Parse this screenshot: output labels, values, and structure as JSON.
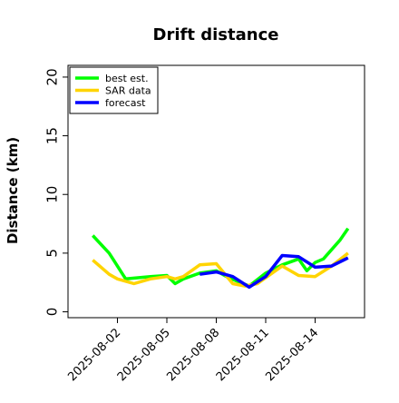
{
  "chart_data": {
    "type": "line",
    "title": "Drift distance",
    "xlabel": "",
    "ylabel": "Distance (km)",
    "ylim": [
      -0.5,
      21
    ],
    "xlim": [
      "2025-07-30T00:00",
      "2025-08-17T00:00"
    ],
    "yticks": [
      0,
      5,
      10,
      15,
      20
    ],
    "ytick_labels": [
      "0",
      "5",
      "10",
      "15",
      "20"
    ],
    "xticks": [
      "2025-08-02",
      "2025-08-05",
      "2025-08-08",
      "2025-08-11",
      "2025-08-14"
    ],
    "xtick_labels": [
      "2025-08-02",
      "2025-08-05",
      "2025-08-08",
      "2025-08-11",
      "2025-08-14"
    ],
    "grid": false,
    "legend": {
      "position": "top-left"
    },
    "series": [
      {
        "name": "best est.",
        "color": "#00ff00",
        "x": [
          "2025-07-31T12:00",
          "2025-08-01T12:00",
          "2025-08-02T12:00",
          "2025-08-04T00:00",
          "2025-08-05T00:00",
          "2025-08-05T12:00",
          "2025-08-06T00:00",
          "2025-08-07T00:00",
          "2025-08-08T00:00",
          "2025-08-08T18:00",
          "2025-08-10T00:00",
          "2025-08-11T00:00",
          "2025-08-12T00:00",
          "2025-08-13T00:00",
          "2025-08-13T12:00",
          "2025-08-14T00:00",
          "2025-08-14T12:00",
          "2025-08-15T12:00",
          "2025-08-16T00:00"
        ],
        "y": [
          6.5,
          5.0,
          2.8,
          3.0,
          3.1,
          2.4,
          2.8,
          3.3,
          3.5,
          2.9,
          2.2,
          3.3,
          4.0,
          4.5,
          3.5,
          4.2,
          4.5,
          6.1,
          7.1
        ]
      },
      {
        "name": "SAR data",
        "color": "#ffd400",
        "x": [
          "2025-07-31T12:00",
          "2025-08-01T12:00",
          "2025-08-02T00:00",
          "2025-08-03T00:00",
          "2025-08-04T00:00",
          "2025-08-05T00:00",
          "2025-08-05T12:00",
          "2025-08-06T00:00",
          "2025-08-07T00:00",
          "2025-08-08T00:00",
          "2025-08-09T00:00",
          "2025-08-09T18:00",
          "2025-08-10T12:00",
          "2025-08-11T00:00",
          "2025-08-12T00:00",
          "2025-08-13T00:00",
          "2025-08-14T00:00",
          "2025-08-15T00:00",
          "2025-08-16T00:00"
        ],
        "y": [
          4.4,
          3.2,
          2.8,
          2.4,
          2.8,
          3.0,
          2.8,
          3.0,
          4.0,
          4.1,
          2.4,
          2.2,
          2.4,
          2.9,
          3.9,
          3.1,
          3.0,
          3.9,
          5.0
        ]
      },
      {
        "name": "forecast",
        "color": "#0000ff",
        "x": [
          "2025-08-07T00:00",
          "2025-08-08T00:00",
          "2025-08-09T00:00",
          "2025-08-10T00:00",
          "2025-08-11T00:00",
          "2025-08-12T00:00",
          "2025-08-13T00:00",
          "2025-08-14T00:00",
          "2025-08-15T00:00",
          "2025-08-16T00:00"
        ],
        "y": [
          3.2,
          3.4,
          3.0,
          2.1,
          3.0,
          4.8,
          4.7,
          3.8,
          3.9,
          4.6
        ]
      }
    ]
  }
}
